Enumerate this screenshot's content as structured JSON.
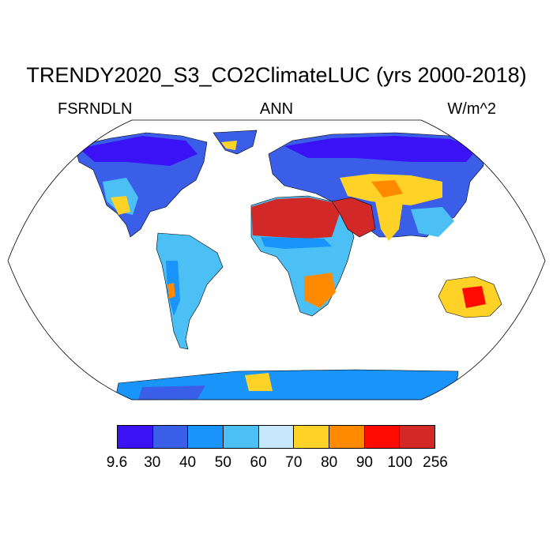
{
  "title": "TRENDY2020_S3_CO2ClimateLUC (yrs 2000-2018)",
  "left_label": "FSRNDLN",
  "center_label": "ANN",
  "right_label": "W/m^2",
  "colorbar": {
    "labels": [
      "9.6",
      "30",
      "40",
      "50",
      "60",
      "70",
      "80",
      "90",
      "100",
      "256"
    ],
    "colors": [
      "#3a12f5",
      "#3a5ee8",
      "#1994fa",
      "#4cbff5",
      "#c6e8fa",
      "#ffd228",
      "#ff8a00",
      "#ff0a00",
      "#d22828"
    ]
  },
  "map": {
    "projection": "robinson",
    "ocean_color": "#ffffff",
    "coastline_color": "#000000"
  }
}
